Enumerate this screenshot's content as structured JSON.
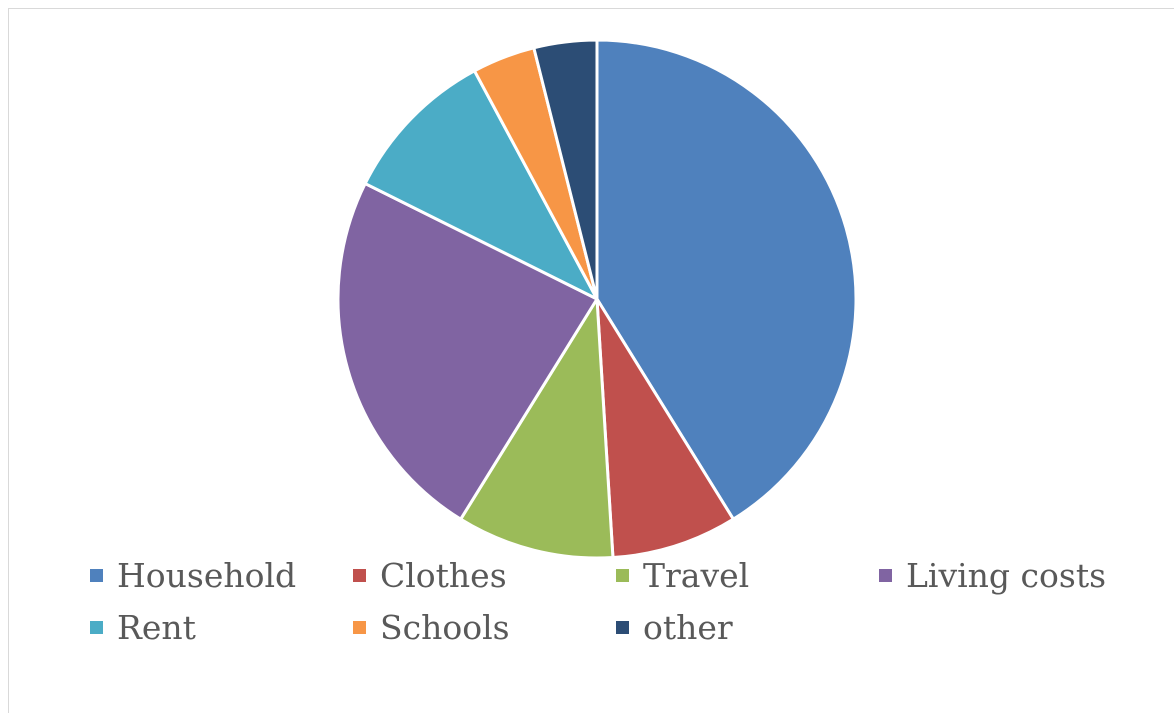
{
  "chart_data": {
    "type": "pie",
    "categories": [
      "Household",
      "Clothes",
      "Travel",
      "Living costs",
      "Rent",
      "Schools",
      "other"
    ],
    "values": [
      42,
      8,
      10,
      24,
      10,
      4,
      4
    ],
    "colors": [
      "#4F81BD",
      "#C0504D",
      "#9BBB59",
      "#8064A2",
      "#4BACC6",
      "#F79646",
      "#2C4D75"
    ],
    "start_angle_deg": 0,
    "direction": "clockwise",
    "legend_position": "bottom",
    "title": ""
  },
  "legend": {
    "items": [
      {
        "label": "Household",
        "color": "#4F81BD"
      },
      {
        "label": "Clothes",
        "color": "#C0504D"
      },
      {
        "label": "Travel",
        "color": "#9BBB59"
      },
      {
        "label": "Living costs",
        "color": "#8064A2"
      },
      {
        "label": "Rent",
        "color": "#4BACC6"
      },
      {
        "label": "Schools",
        "color": "#F79646"
      },
      {
        "label": "other",
        "color": "#2C4D75"
      }
    ]
  }
}
